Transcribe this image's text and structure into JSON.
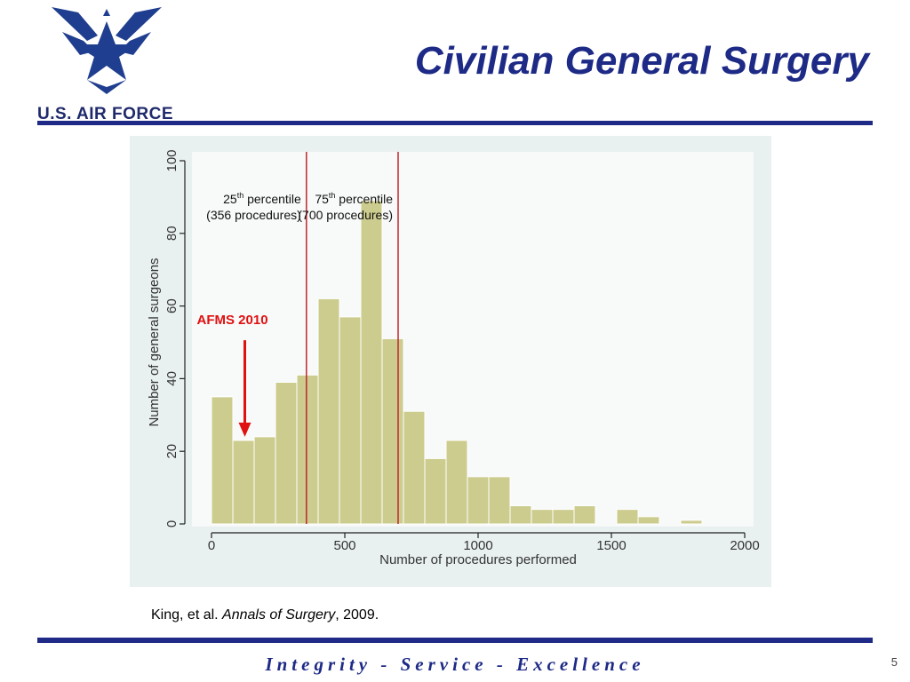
{
  "logo": {
    "text": "U.S. AIR FORCE",
    "icon": "air-force-wings-emblem",
    "color": "#1f2a6b"
  },
  "title": "Civilian General Surgery",
  "chart_data": {
    "type": "bar",
    "subtype": "histogram",
    "bin_width": 80,
    "bins": [
      {
        "start": 0,
        "end": 80,
        "count": 35
      },
      {
        "start": 80,
        "end": 160,
        "count": 23
      },
      {
        "start": 160,
        "end": 240,
        "count": 24
      },
      {
        "start": 240,
        "end": 320,
        "count": 39
      },
      {
        "start": 320,
        "end": 400,
        "count": 41
      },
      {
        "start": 400,
        "end": 480,
        "count": 62
      },
      {
        "start": 480,
        "end": 560,
        "count": 57
      },
      {
        "start": 560,
        "end": 640,
        "count": 89
      },
      {
        "start": 640,
        "end": 720,
        "count": 51
      },
      {
        "start": 720,
        "end": 800,
        "count": 31
      },
      {
        "start": 800,
        "end": 880,
        "count": 18
      },
      {
        "start": 880,
        "end": 960,
        "count": 23
      },
      {
        "start": 960,
        "end": 1040,
        "count": 13
      },
      {
        "start": 1040,
        "end": 1120,
        "count": 13
      },
      {
        "start": 1120,
        "end": 1200,
        "count": 5
      },
      {
        "start": 1200,
        "end": 1280,
        "count": 4
      },
      {
        "start": 1280,
        "end": 1360,
        "count": 4
      },
      {
        "start": 1360,
        "end": 1440,
        "count": 5
      },
      {
        "start": 1440,
        "end": 1520,
        "count": 0
      },
      {
        "start": 1520,
        "end": 1600,
        "count": 4
      },
      {
        "start": 1600,
        "end": 1680,
        "count": 2
      },
      {
        "start": 1680,
        "end": 1760,
        "count": 0
      },
      {
        "start": 1760,
        "end": 1840,
        "count": 1
      },
      {
        "start": 1840,
        "end": 1920,
        "count": 0
      },
      {
        "start": 1920,
        "end": 2000,
        "count": 0
      }
    ],
    "xlabel": "Number of procedures performed",
    "ylabel": "Number of general surgeons",
    "xlim": [
      0,
      2000
    ],
    "ylim": [
      0,
      100
    ],
    "xticks": [
      0,
      500,
      1000,
      1500,
      2000
    ],
    "yticks": [
      0,
      20,
      40,
      60,
      80,
      100
    ],
    "grid": false,
    "bar_color": "#cccc8e",
    "bar_edge_color": "#ffffff",
    "reference_lines": [
      {
        "x": 356,
        "color": "#c0272d",
        "label_line1_num": "25",
        "label_line1_sup": "th",
        "label_line1_text": " percentile",
        "label_line2": "(356 procedures)"
      },
      {
        "x": 700,
        "color": "#c0272d",
        "label_line1_num": "75",
        "label_line1_sup": "th",
        "label_line1_text": " percentile",
        "label_line2": "(700 procedures)"
      }
    ],
    "annotation": {
      "text": "AFMS 2010",
      "color": "#e01010",
      "arrow_x": 125,
      "arrow_y_from": 54,
      "arrow_y_to": 24
    }
  },
  "citation": {
    "authors": "King, et al. ",
    "journal": "Annals of Surgery",
    "year": ", 2009."
  },
  "motto": "Integrity - Service - Excellence",
  "page_number": "5",
  "colors": {
    "navy": "#1f2a86",
    "panel_bg": "#e9f0f0",
    "plot_bg": "#f8f9f9"
  }
}
